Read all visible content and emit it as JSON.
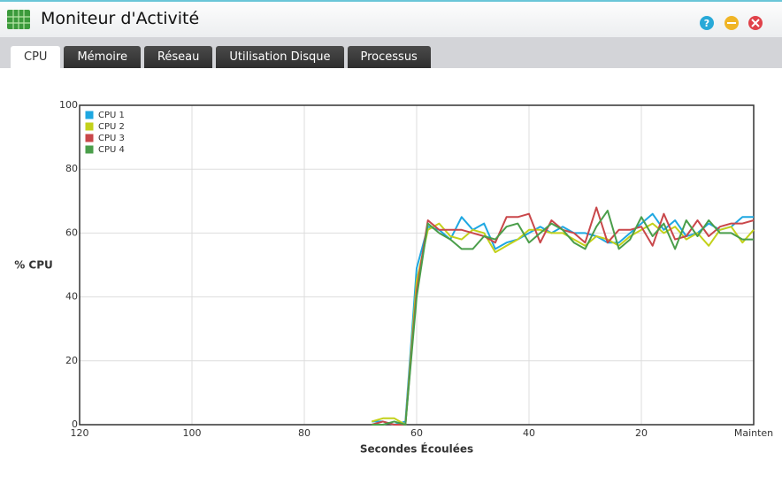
{
  "window": {
    "title": "Moniteur d'Activité"
  },
  "tabs": [
    "CPU",
    "Mémoire",
    "Réseau",
    "Utilisation Disque",
    "Processus"
  ],
  "active_tab": 0,
  "chart_data": {
    "type": "line",
    "xlabel": "Secondes Écoulées",
    "ylabel": "% CPU",
    "x": [
      68,
      66,
      64,
      62,
      60,
      58,
      56,
      54,
      52,
      50,
      48,
      46,
      44,
      42,
      40,
      38,
      36,
      34,
      32,
      30,
      28,
      26,
      24,
      22,
      20,
      18,
      16,
      14,
      12,
      10,
      8,
      6,
      4,
      2,
      0
    ],
    "series": [
      {
        "name": "CPU 1",
        "color": "#1ea7e1",
        "values": [
          1,
          1,
          0,
          1,
          49,
          62,
          61,
          58,
          65,
          61,
          63,
          55,
          57,
          58,
          60,
          62,
          60,
          62,
          60,
          60,
          59,
          57,
          57,
          60,
          63,
          66,
          61,
          64,
          59,
          60,
          63,
          61,
          62,
          65,
          65
        ]
      },
      {
        "name": "CPU 2",
        "color": "#c3d11a",
        "values": [
          1,
          2,
          2,
          0,
          45,
          61,
          63,
          59,
          58,
          61,
          60,
          54,
          56,
          58,
          61,
          61,
          60,
          60,
          58,
          56,
          59,
          58,
          56,
          59,
          61,
          63,
          60,
          62,
          58,
          60,
          56,
          61,
          62,
          57,
          61
        ]
      },
      {
        "name": "CPU 3",
        "color": "#c9474a",
        "values": [
          0,
          1,
          0,
          0,
          42,
          64,
          61,
          61,
          61,
          60,
          59,
          57,
          65,
          65,
          66,
          57,
          64,
          61,
          60,
          57,
          68,
          57,
          61,
          61,
          62,
          56,
          66,
          58,
          59,
          64,
          59,
          62,
          63,
          63,
          64
        ]
      },
      {
        "name": "CPU 4",
        "color": "#4a9e4a",
        "values": [
          0,
          0,
          1,
          0,
          40,
          63,
          60,
          58,
          55,
          55,
          59,
          58,
          62,
          63,
          57,
          60,
          63,
          61,
          57,
          55,
          62,
          67,
          55,
          58,
          65,
          59,
          63,
          55,
          64,
          59,
          64,
          60,
          60,
          58,
          58
        ]
      }
    ],
    "xlim": [
      120,
      0
    ],
    "ylim": [
      0,
      100
    ],
    "xticks": [
      120,
      100,
      80,
      60,
      40,
      20,
      {
        "value": 0,
        "label": "Mainten"
      }
    ],
    "yticks": [
      0,
      20,
      40,
      60,
      80,
      100
    ],
    "grid": true,
    "legend": "upper left"
  }
}
